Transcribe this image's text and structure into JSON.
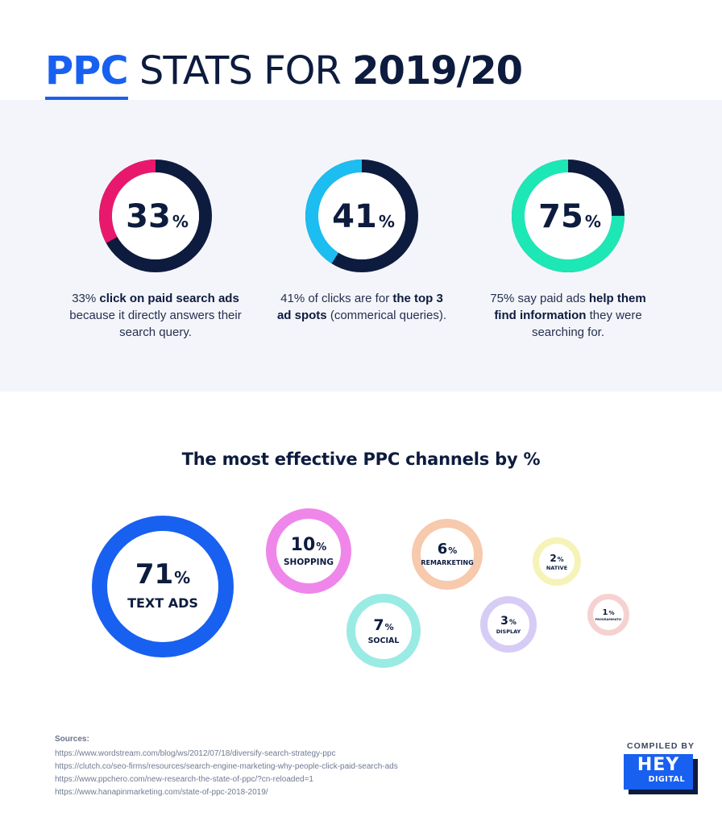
{
  "header": {
    "title_ppc": "PPC",
    "title_mid": " STATS FOR ",
    "title_year": "2019/20"
  },
  "chart_data": [
    {
      "type": "pie",
      "values": [
        33,
        41,
        75
      ],
      "stats": [
        {
          "value": 33,
          "number": "33",
          "unit": "%",
          "color": "#e8196c",
          "rest_color": "#0d1b3e",
          "desc_pre": "33% ",
          "desc_bold": "click on paid search ads",
          "desc_post": " because it directly answers their search query."
        },
        {
          "value": 41,
          "number": "41",
          "unit": "%",
          "color": "#1cbdf0",
          "rest_color": "#0d1b3e",
          "desc_pre": "41% of clicks are for ",
          "desc_bold": "the top 3 ad spots",
          "desc_post": " (commerical queries)."
        },
        {
          "value": 75,
          "number": "75",
          "unit": "%",
          "color": "#1de8b5",
          "rest_color": "#0d1b3e",
          "desc_pre": "75% say paid ads ",
          "desc_bold": "help them find information",
          "desc_post": " they were searching for."
        }
      ]
    },
    {
      "type": "bubble",
      "title": "The most effective PPC channels by %",
      "categories": [
        "TEXT ADS",
        "SHOPPING",
        "SOCIAL",
        "REMARKETING",
        "DISPLAY",
        "NATIVE",
        "PROGRAMMATIC"
      ],
      "values": [
        71,
        10,
        7,
        6,
        3,
        2,
        1
      ],
      "unit": "%",
      "colors": [
        "#1860f0",
        "#ef87ea",
        "#9aebe4",
        "#f7c9ad",
        "#d6ccf5",
        "#f5f3b8",
        "#f5d2d0"
      ]
    }
  ],
  "sources": {
    "heading": "Sources:",
    "links": [
      "https://www.wordstream.com/blog/ws/2012/07/18/diversify-search-strategy-ppc",
      "https://clutch.co/seo-firms/resources/search-engine-marketing-why-people-click-paid-search-ads",
      "https://www.ppchero.com/new-research-the-state-of-ppc/?cn-reloaded=1",
      "https://www.hanapinmarketing.com/state-of-ppc-2018-2019/"
    ]
  },
  "compiled": {
    "label": "COMPILED BY",
    "logo_main": "HEY",
    "logo_sub": "DIGITAL"
  }
}
